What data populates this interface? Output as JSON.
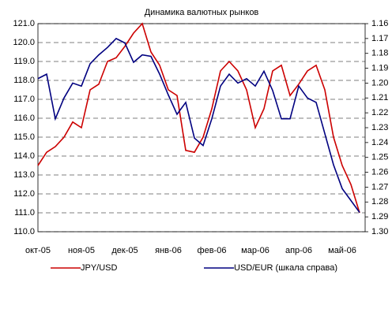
{
  "chart_data": {
    "type": "line",
    "title": "Динамика валютных рынков",
    "categories": [
      "окт-05",
      null,
      null,
      null,
      null,
      "ноя-05",
      null,
      null,
      null,
      null,
      "дек-05",
      null,
      null,
      null,
      null,
      "янв-06",
      null,
      null,
      null,
      null,
      "фев-06",
      null,
      null,
      null,
      null,
      "мар-06",
      null,
      null,
      null,
      null,
      "апр-06",
      null,
      null,
      null,
      null,
      "май-06",
      null,
      null
    ],
    "series": [
      {
        "name": "JPY/USD",
        "color": "#cc0000",
        "values": [
          113.5,
          114.2,
          114.5,
          115,
          115.8,
          115.5,
          117.5,
          117.8,
          119,
          119.2,
          119.8,
          120.5,
          121,
          119.5,
          118.8,
          117.5,
          117.2,
          114.3,
          114.2,
          115,
          116.5,
          118.5,
          119,
          118.5,
          117.5,
          115.5,
          116.5,
          118.5,
          118.8,
          117.2,
          117.8,
          118.5,
          118.8,
          117.5,
          115,
          113.5,
          112.5,
          111
        ]
      },
      {
        "name": "USD/EUR (шкала справа)",
        "color": "#000080",
        "axis": "y2",
        "values": [
          1.197,
          1.194,
          1.224,
          1.21,
          1.2,
          1.202,
          1.187,
          1.181,
          1.176,
          1.17,
          1.173,
          1.186,
          1.181,
          1.182,
          1.194,
          1.208,
          1.221,
          1.213,
          1.237,
          1.242,
          1.224,
          1.202,
          1.194,
          1.2,
          1.197,
          1.202,
          1.192,
          1.205,
          1.224,
          1.224,
          1.202,
          1.21,
          1.213,
          1.234,
          1.255,
          1.271,
          1.279,
          1.287
        ]
      }
    ],
    "ylim": [
      110,
      121
    ],
    "yticks": [
      {
        "value": 110,
        "label": "110.0"
      },
      {
        "value": 111,
        "label": "111.0"
      },
      {
        "value": 112,
        "label": "112.0"
      },
      {
        "value": 113,
        "label": "113.0"
      },
      {
        "value": 114,
        "label": "114.0"
      },
      {
        "value": 115,
        "label": "115.0"
      },
      {
        "value": 116,
        "label": "116.0"
      },
      {
        "value": 117,
        "label": "117.0"
      },
      {
        "value": 118,
        "label": "118.0"
      },
      {
        "value": 119,
        "label": "119.0"
      },
      {
        "value": 120,
        "label": "120.0"
      },
      {
        "value": 121,
        "label": "121.0"
      }
    ],
    "y2lim": [
      1.3,
      1.16
    ],
    "y2ticks": [
      {
        "value": 1.3,
        "label": "1.30"
      },
      1.29,
      1.28,
      1.27,
      1.26,
      1.25,
      1.24,
      1.23,
      1.22,
      1.21,
      {
        "value": 1.2,
        "label": "1.20"
      },
      1.19,
      1.18,
      1.17,
      1.16
    ],
    "grid": true,
    "legend": "bottom"
  }
}
